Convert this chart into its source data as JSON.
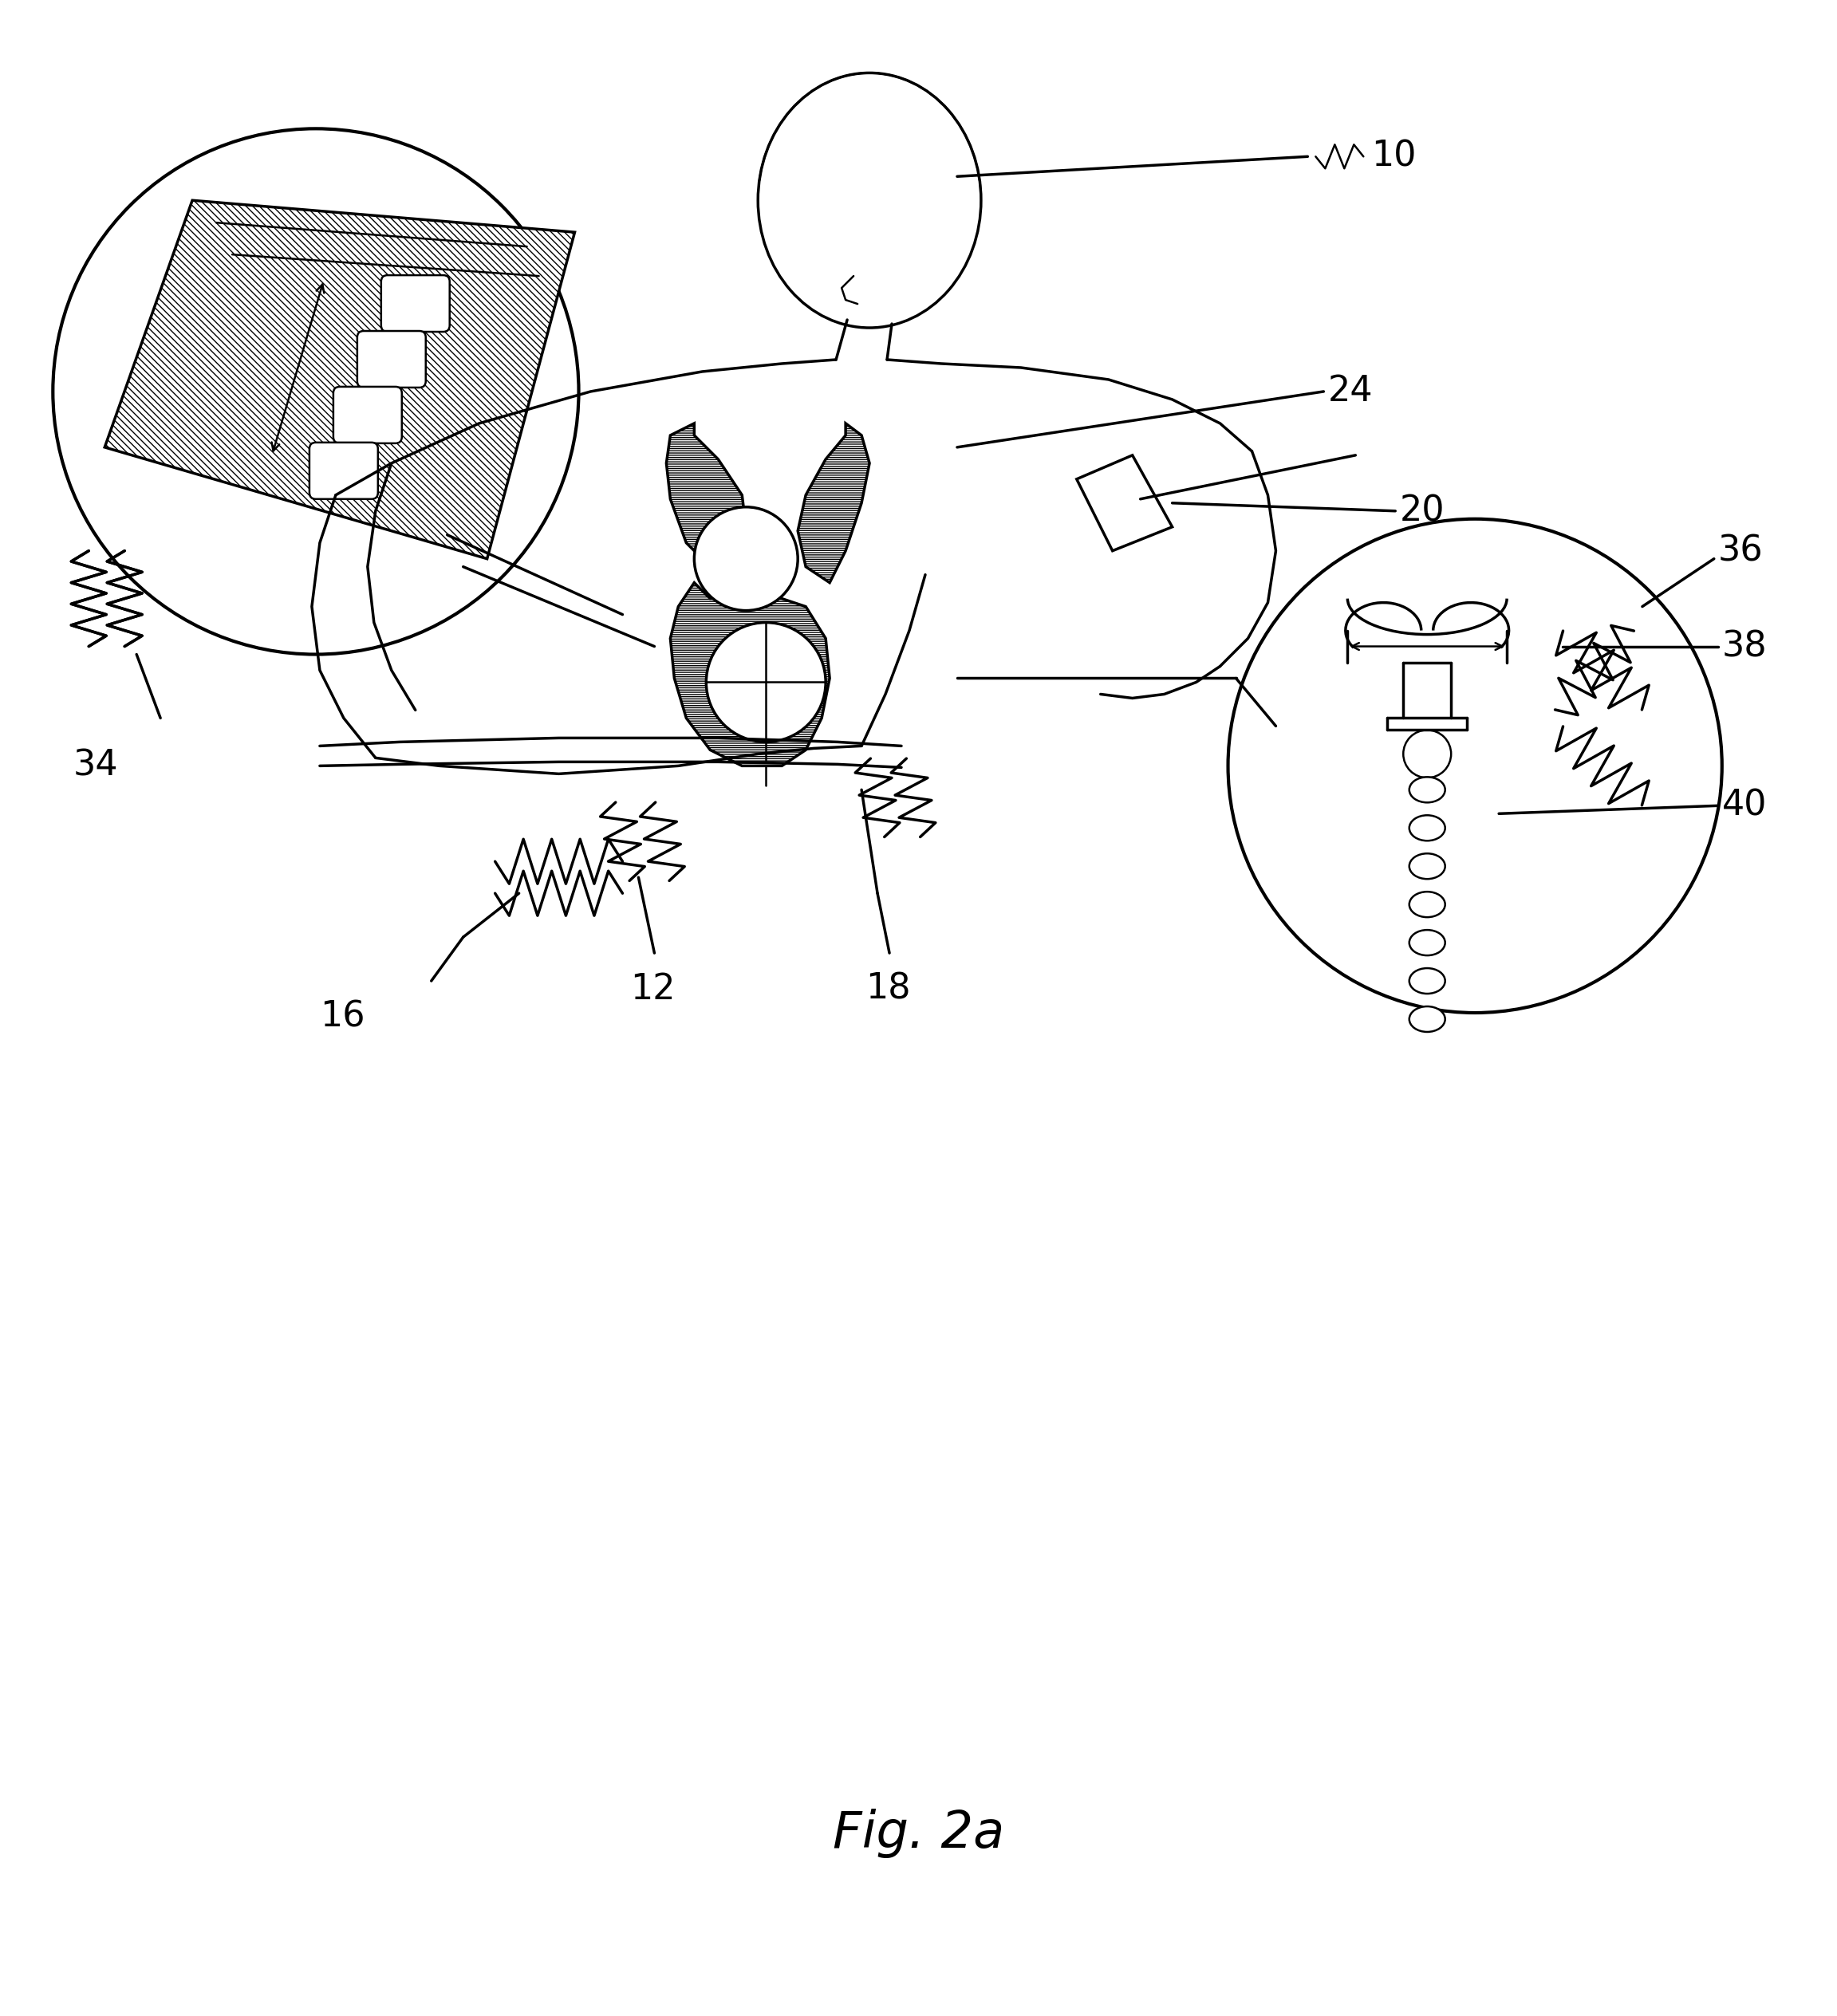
{
  "title": "Fig. 2a",
  "bg_color": "#ffffff",
  "line_color": "#000000",
  "fig_width": 23.03,
  "fig_height": 25.28,
  "lw": 2.5,
  "lw_thin": 1.8,
  "label_fs": 32,
  "caption_fs": 46
}
